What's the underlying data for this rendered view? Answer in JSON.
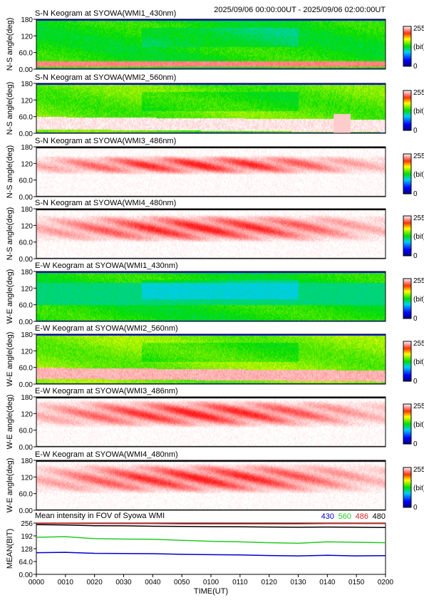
{
  "header": {
    "time_range": "2025/09/06 00:00:00UT - 2025/09/06 02:00:00UT"
  },
  "colorbar": {
    "max_label": "255",
    "unit_label": "(bit)",
    "min_label": "0"
  },
  "chart_data": [
    {
      "type": "heatmap",
      "title": "S-N Keogram at SYOWA(WMI1_430nm)",
      "ylabel": "N-S angle(deg)",
      "yticks": [
        "180",
        "120",
        "60.0",
        "0.00"
      ],
      "ylim": [
        0,
        180
      ],
      "colormap": "green",
      "description_values": {
        "base_level": 130,
        "aurora_band_deg": [
          10,
          30
        ],
        "band_level": 230
      }
    },
    {
      "type": "heatmap",
      "title": "S-N Keogram at SYOWA(WMI2_560nm)",
      "ylabel": "N-S angle(deg)",
      "yticks": [
        "180",
        "120",
        "60.0",
        "0.00"
      ],
      "ylim": [
        0,
        180
      ],
      "colormap": "green",
      "description_values": {
        "base_level": 145,
        "aurora_band_deg": [
          15,
          60
        ],
        "band_level": 250
      }
    },
    {
      "type": "heatmap",
      "title": "S-N Keogram at SYOWA(WMI3_486nm)",
      "ylabel": "N-S angle(deg)",
      "yticks": [
        "180",
        "120",
        "60.0",
        "0.00"
      ],
      "ylim": [
        0,
        180
      ],
      "colormap": "red",
      "description_values": {
        "base_level": 255,
        "aurora_band_deg": [
          80,
          150
        ],
        "band_level": 255
      }
    },
    {
      "type": "heatmap",
      "title": "S-N Keogram at SYOWA(WMI4_480nm)",
      "ylabel": "N-S angle(deg)",
      "yticks": [
        "180",
        "120",
        "60.0",
        "0.00"
      ],
      "ylim": [
        0,
        180
      ],
      "colormap": "red",
      "description_values": {
        "base_level": 255,
        "aurora_band_deg": [
          60,
          160
        ],
        "band_level": 255
      }
    },
    {
      "type": "heatmap",
      "title": "E-W Keogram at SYOWA(WMI1_430nm)",
      "ylabel": "W-E angle(deg)",
      "yticks": [
        "180",
        "120",
        "60.0",
        "0.00"
      ],
      "ylim": [
        0,
        180
      ],
      "colormap": "green",
      "description_values": {
        "base_level": 130,
        "aurora_band_deg": [
          60,
          140
        ],
        "band_level": 110
      }
    },
    {
      "type": "heatmap",
      "title": "E-W Keogram at SYOWA(WMI2_560nm)",
      "ylabel": "W-E angle(deg)",
      "yticks": [
        "180",
        "120",
        "60.0",
        "0.00"
      ],
      "ylim": [
        0,
        180
      ],
      "colormap": "green",
      "description_values": {
        "base_level": 150,
        "aurora_band_deg": [
          20,
          60
        ],
        "band_level": 240
      }
    },
    {
      "type": "heatmap",
      "title": "E-W Keogram at SYOWA(WMI3_486nm)",
      "ylabel": "W-E angle(deg)",
      "yticks": [
        "180",
        "120",
        "60.0",
        "0.00"
      ],
      "ylim": [
        0,
        180
      ],
      "colormap": "red",
      "description_values": {
        "base_level": 255,
        "aurora_band_deg": [
          70,
          170
        ],
        "band_level": 255
      }
    },
    {
      "type": "heatmap",
      "title": "E-W Keogram at SYOWA(WMI4_480nm)",
      "ylabel": "W-E angle(deg)",
      "yticks": [
        "180",
        "120",
        "60.0",
        "0.00"
      ],
      "ylim": [
        0,
        180
      ],
      "colormap": "red",
      "description_values": {
        "base_level": 255,
        "aurora_band_deg": [
          60,
          170
        ],
        "band_level": 255
      }
    },
    {
      "type": "line",
      "title": "Mean intensity in FOV of Syowa WMI",
      "xlabel": "TIME(UT)",
      "ylabel": "MEAN(BIT)",
      "ylim": [
        0,
        256
      ],
      "yticks": [
        "256",
        "192",
        "128",
        "64.0",
        "0.00"
      ],
      "xticks": [
        "0000",
        "0010",
        "0020",
        "0030",
        "0040",
        "0050",
        "0100",
        "0110",
        "0120",
        "0130",
        "0140",
        "0150",
        "0200"
      ],
      "x": [
        0,
        10,
        20,
        30,
        40,
        50,
        60,
        70,
        80,
        90,
        100,
        110,
        120
      ],
      "series": [
        {
          "name": "430",
          "color": "#0000cc",
          "values": [
            108,
            110,
            105,
            104,
            103,
            100,
            98,
            97,
            94,
            92,
            95,
            92,
            93
          ]
        },
        {
          "name": "560",
          "color": "#22cc22",
          "values": [
            185,
            188,
            178,
            176,
            175,
            170,
            165,
            162,
            158,
            155,
            162,
            160,
            158
          ]
        },
        {
          "name": "486",
          "color": "#dd2222",
          "values": [
            254,
            254,
            253,
            253,
            253,
            252,
            252,
            252,
            252,
            252,
            253,
            253,
            253
          ]
        },
        {
          "name": "480",
          "color": "#000000",
          "values": [
            248,
            246,
            243,
            242,
            240,
            239,
            238,
            237,
            236,
            235,
            236,
            235,
            234
          ]
        }
      ]
    }
  ]
}
